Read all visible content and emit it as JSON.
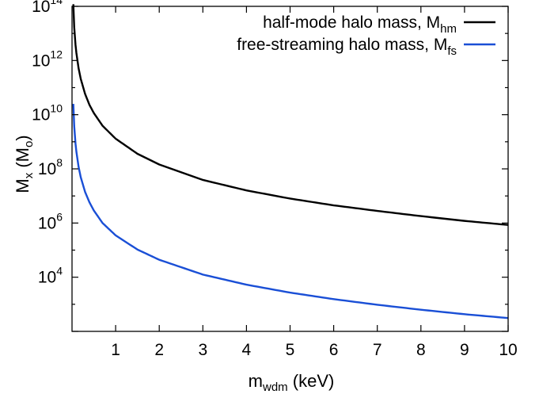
{
  "chart_data": {
    "type": "line",
    "xlabel": {
      "main": "m",
      "sub": "wdm",
      "rest": " (keV)"
    },
    "ylabel": {
      "main": "M",
      "sub": "x",
      "mid": " (M",
      "sub2": "o",
      "rest": ")"
    },
    "x_scale": "linear",
    "y_scale": "log",
    "xlim": [
      0,
      10
    ],
    "ylim": [
      100,
      100000000000000.0
    ],
    "xticks": [
      1,
      2,
      3,
      4,
      5,
      6,
      7,
      8,
      9,
      10
    ],
    "xtick_labels": [
      "1",
      "2",
      "3",
      "4",
      "5",
      "6",
      "7",
      "8",
      "9",
      "10"
    ],
    "yticks": [
      10000,
      1000000,
      100000000,
      10000000000,
      1000000000000,
      100000000000000
    ],
    "ytick_labels": [
      {
        "base": "10",
        "exp": "4"
      },
      {
        "base": "10",
        "exp": "6"
      },
      {
        "base": "10",
        "exp": "8"
      },
      {
        "base": "10",
        "exp": "10"
      },
      {
        "base": "10",
        "exp": "12"
      },
      {
        "base": "10",
        "exp": "14"
      }
    ],
    "legend_position": "top-right",
    "series": [
      {
        "label": {
          "main": "half-mode halo mass, M",
          "sub": "hm"
        },
        "color": "#000000",
        "x": [
          0.03,
          0.05,
          0.08,
          0.1,
          0.15,
          0.2,
          0.3,
          0.4,
          0.5,
          0.7,
          1,
          1.5,
          2,
          3,
          4,
          5,
          6,
          7,
          8,
          9,
          10
        ],
        "y": [
          120000000000000.0,
          17000000000000.0,
          3800000000000.0,
          1900000000000.0,
          520000000000.0,
          210000000000.0,
          58000000000.0,
          23000000000.0,
          11500000000.0,
          3900000000.0,
          1300000000.0,
          360000000.0,
          145000000.0,
          39000000.0,
          16000000.0,
          8000000.0,
          4500000.0,
          2800000.0,
          1800000.0,
          1200000.0,
          850000.0
        ]
      },
      {
        "label": {
          "main": "free-streaming halo mass, M",
          "sub": "fs"
        },
        "color": "#1a4fd6",
        "x": [
          0.03,
          0.05,
          0.08,
          0.1,
          0.15,
          0.2,
          0.3,
          0.4,
          0.5,
          0.7,
          1,
          1.5,
          2,
          3,
          4,
          5,
          6,
          7,
          8,
          9,
          10
        ],
        "y": [
          25000000000.0,
          3800000000.0,
          850000000.0,
          430000000.0,
          120000000.0,
          49000000.0,
          14000000.0,
          5800000.0,
          2900000.0,
          1000000.0,
          350000.0,
          105000.0,
          44000.0,
          12500.0,
          5300.0,
          2700.0,
          1550.0,
          960.0,
          630.0,
          430.0,
          310.0
        ]
      }
    ]
  }
}
